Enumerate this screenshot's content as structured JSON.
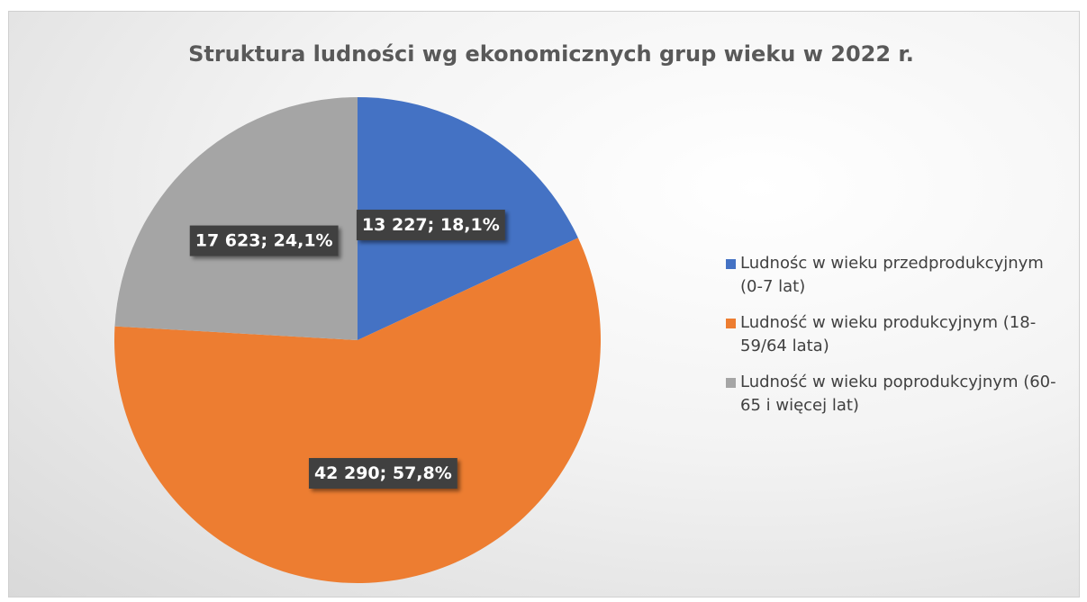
{
  "chart_data": {
    "type": "pie",
    "title": "Struktura ludności wg ekonomicznych grup wieku w 2022 r.",
    "categories": [
      "Ludnośc w wieku przedprodukcyjnym (0-7 lat)",
      "Ludność w wieku produkcyjnym (18-59/64 lata)",
      "Ludność w wieku poprodukcyjnym (60-65 i więcej lat)"
    ],
    "values": [
      13227,
      42290,
      17623
    ],
    "value_labels": [
      "13 227; 18,1%",
      "42 290; 57,8%",
      "17 623; 24,1%"
    ],
    "colors": [
      "#4472c4",
      "#ed7d31",
      "#a5a5a5"
    ],
    "legend": "right"
  }
}
